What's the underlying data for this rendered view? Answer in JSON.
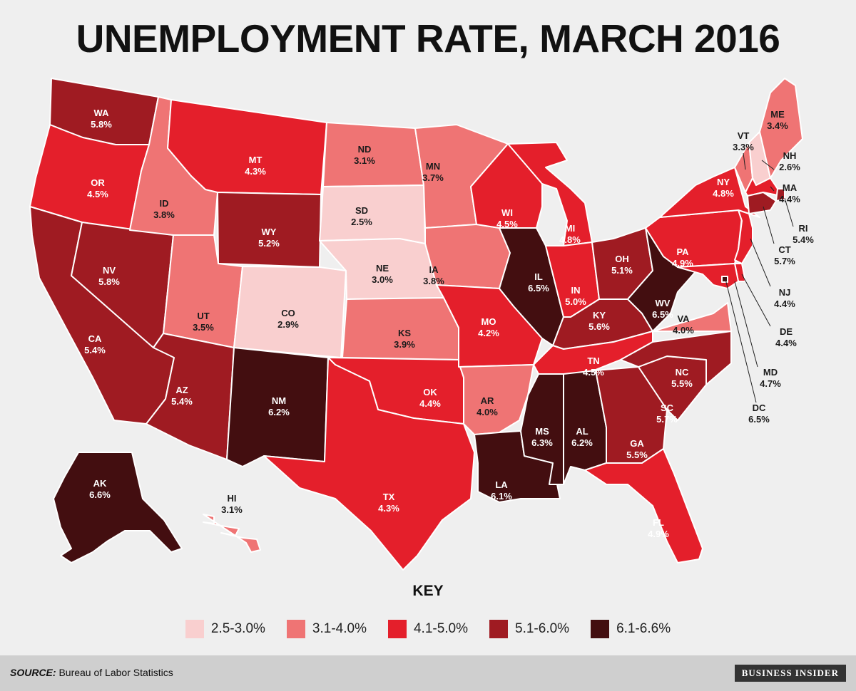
{
  "title": "UNEMPLOYMENT RATE, MARCH 2016",
  "key_title": "KEY",
  "legend": [
    {
      "label": "2.5-3.0%",
      "color": "#f9cfcf"
    },
    {
      "label": "3.1-4.0%",
      "color": "#ef7474"
    },
    {
      "label": "4.1-5.0%",
      "color": "#e41f2b"
    },
    {
      "label": "5.1-6.0%",
      "color": "#9f1b22"
    },
    {
      "label": "6.1-6.6%",
      "color": "#430e10"
    }
  ],
  "source_label": "SOURCE:",
  "source_text": "Bureau of Labor Statistics",
  "brand": "BUSINESS INSIDER",
  "states": [
    {
      "abbr": "WA",
      "rate": "5.8%",
      "bin": 3
    },
    {
      "abbr": "OR",
      "rate": "4.5%",
      "bin": 2
    },
    {
      "abbr": "CA",
      "rate": "5.4%",
      "bin": 3
    },
    {
      "abbr": "NV",
      "rate": "5.8%",
      "bin": 3
    },
    {
      "abbr": "ID",
      "rate": "3.8%",
      "bin": 1
    },
    {
      "abbr": "MT",
      "rate": "4.3%",
      "bin": 2
    },
    {
      "abbr": "WY",
      "rate": "5.2%",
      "bin": 3
    },
    {
      "abbr": "UT",
      "rate": "3.5%",
      "bin": 1
    },
    {
      "abbr": "AZ",
      "rate": "5.4%",
      "bin": 3
    },
    {
      "abbr": "CO",
      "rate": "2.9%",
      "bin": 0
    },
    {
      "abbr": "NM",
      "rate": "6.2%",
      "bin": 4
    },
    {
      "abbr": "ND",
      "rate": "3.1%",
      "bin": 1
    },
    {
      "abbr": "SD",
      "rate": "2.5%",
      "bin": 0
    },
    {
      "abbr": "NE",
      "rate": "3.0%",
      "bin": 0
    },
    {
      "abbr": "KS",
      "rate": "3.9%",
      "bin": 1
    },
    {
      "abbr": "OK",
      "rate": "4.4%",
      "bin": 2
    },
    {
      "abbr": "TX",
      "rate": "4.3%",
      "bin": 2
    },
    {
      "abbr": "MN",
      "rate": "3.7%",
      "bin": 1
    },
    {
      "abbr": "IA",
      "rate": "3.8%",
      "bin": 1
    },
    {
      "abbr": "MO",
      "rate": "4.2%",
      "bin": 2
    },
    {
      "abbr": "AR",
      "rate": "4.0%",
      "bin": 1
    },
    {
      "abbr": "LA",
      "rate": "6.1%",
      "bin": 4
    },
    {
      "abbr": "WI",
      "rate": "4.5%",
      "bin": 2
    },
    {
      "abbr": "IL",
      "rate": "6.5%",
      "bin": 4
    },
    {
      "abbr": "MI",
      "rate": "4.8%",
      "bin": 2
    },
    {
      "abbr": "IN",
      "rate": "5.0%",
      "bin": 2
    },
    {
      "abbr": "OH",
      "rate": "5.1%",
      "bin": 3
    },
    {
      "abbr": "KY",
      "rate": "5.6%",
      "bin": 3
    },
    {
      "abbr": "TN",
      "rate": "4.5%",
      "bin": 2
    },
    {
      "abbr": "MS",
      "rate": "6.3%",
      "bin": 4
    },
    {
      "abbr": "AL",
      "rate": "6.2%",
      "bin": 4
    },
    {
      "abbr": "GA",
      "rate": "5.5%",
      "bin": 3
    },
    {
      "abbr": "FL",
      "rate": "4.9%",
      "bin": 2
    },
    {
      "abbr": "SC",
      "rate": "5.7%",
      "bin": 3
    },
    {
      "abbr": "NC",
      "rate": "5.5%",
      "bin": 3
    },
    {
      "abbr": "VA",
      "rate": "4.0%",
      "bin": 1
    },
    {
      "abbr": "WV",
      "rate": "6.5%",
      "bin": 4
    },
    {
      "abbr": "PA",
      "rate": "4.9%",
      "bin": 2
    },
    {
      "abbr": "NY",
      "rate": "4.8%",
      "bin": 2
    },
    {
      "abbr": "VT",
      "rate": "3.3%",
      "bin": 1
    },
    {
      "abbr": "NH",
      "rate": "2.6%",
      "bin": 0
    },
    {
      "abbr": "ME",
      "rate": "3.4%",
      "bin": 1
    },
    {
      "abbr": "MA",
      "rate": "4.4%",
      "bin": 2
    },
    {
      "abbr": "RI",
      "rate": "5.4%",
      "bin": 3
    },
    {
      "abbr": "CT",
      "rate": "5.7%",
      "bin": 3
    },
    {
      "abbr": "NJ",
      "rate": "4.4%",
      "bin": 2
    },
    {
      "abbr": "DE",
      "rate": "4.4%",
      "bin": 2
    },
    {
      "abbr": "MD",
      "rate": "4.7%",
      "bin": 2
    },
    {
      "abbr": "DC",
      "rate": "6.5%",
      "bin": 4
    },
    {
      "abbr": "AK",
      "rate": "6.6%",
      "bin": 4
    },
    {
      "abbr": "HI",
      "rate": "3.1%",
      "bin": 1
    }
  ]
}
